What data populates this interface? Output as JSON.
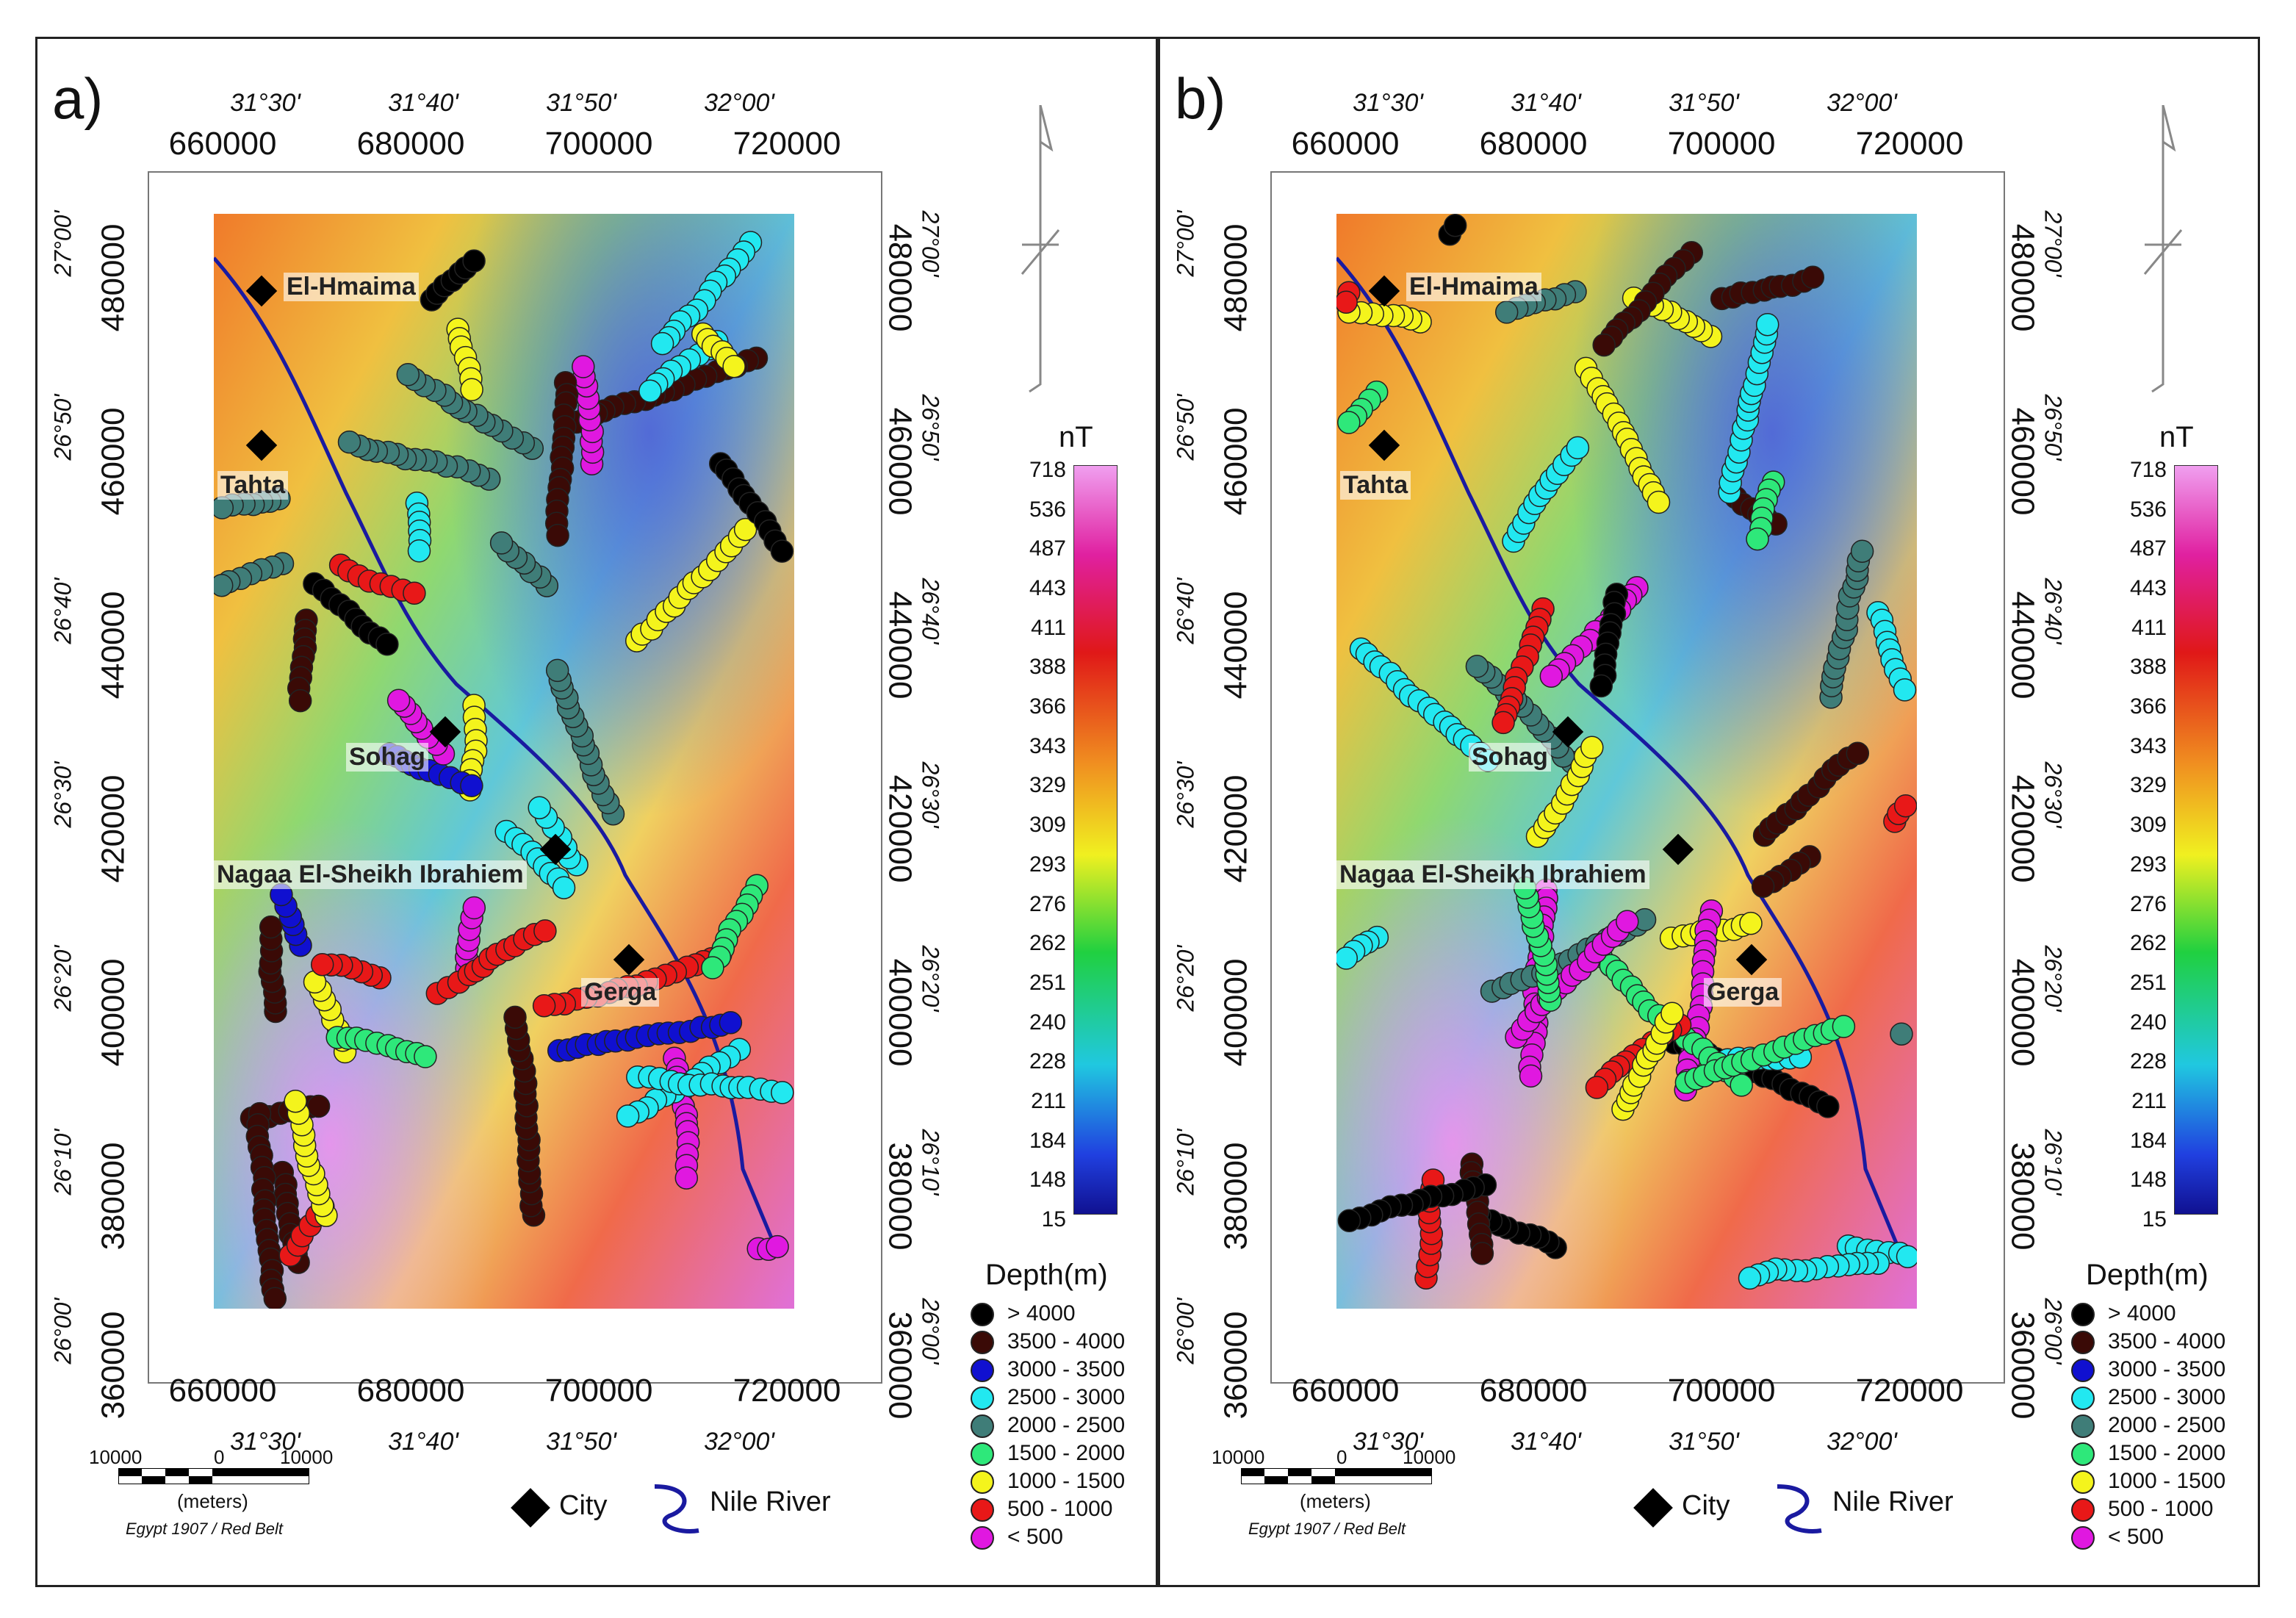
{
  "panels": [
    {
      "id": "a",
      "label": "a)"
    },
    {
      "id": "b",
      "label": "b)"
    }
  ],
  "axes": {
    "easting_labels": [
      "660000",
      "680000",
      "700000",
      "720000"
    ],
    "longitude_labels": [
      "31°30'",
      "31°40'",
      "31°50'",
      "32°00'"
    ],
    "northing_labels": [
      "480000",
      "460000",
      "440000",
      "420000",
      "400000",
      "380000",
      "360000"
    ],
    "latitude_labels": [
      "27°00'",
      "26°50'",
      "26°40'",
      "26°30'",
      "26°20'",
      "26°10'",
      "26°00'"
    ]
  },
  "cities": [
    "El-Hmaima",
    "Tahta",
    "Sohag",
    "Nagaa El-Sheikh Ibrahiem",
    "Gerga"
  ],
  "colorbar": {
    "unit": "nT",
    "ticks": [
      "718",
      "536",
      "487",
      "443",
      "411",
      "388",
      "366",
      "343",
      "329",
      "309",
      "293",
      "276",
      "262",
      "251",
      "240",
      "228",
      "211",
      "184",
      "148",
      "15"
    ]
  },
  "depth_legend": {
    "title": "Depth(m)",
    "rows": [
      {
        "range": ">  4000",
        "color": "#000000"
      },
      {
        "range": "3500  -  4000",
        "color": "#3a0a06"
      },
      {
        "range": "3000  -  3500",
        "color": "#1010d0"
      },
      {
        "range": "2500  -  3000",
        "color": "#22e8f0"
      },
      {
        "range": "2000  -  2500",
        "color": "#3f7d78"
      },
      {
        "range": "1500  -  2000",
        "color": "#2ee87a"
      },
      {
        "range": "1000  -  1500",
        "color": "#f4f41c"
      },
      {
        "range": "500  -  1000",
        "color": "#e81818"
      },
      {
        "range": "<  500",
        "color": "#e018e0"
      }
    ]
  },
  "scale_bar": {
    "left": "10000",
    "mid": "0",
    "right": "10000",
    "unit": "(meters)"
  },
  "projection": "Egypt 1907 / Red Belt",
  "symbols": {
    "city": "City",
    "river": "Nile River"
  }
}
